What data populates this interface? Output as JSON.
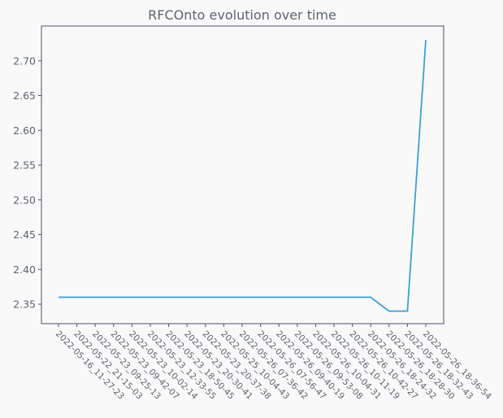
{
  "chart_data": {
    "type": "line",
    "title": "RFCOnto evolution over time",
    "xlabel": "",
    "ylabel": "",
    "categories": [
      "2022-05-16_11-27-23",
      "2022-05-22_21-15-03",
      "2022-05-23_09-25-13",
      "2022-05-23_09-42-07",
      "2022-05-23_10-02-14",
      "2022-05-23_12-33-55",
      "2022-05-23_18-50-45",
      "2022-05-23_20-30-41",
      "2022-05-23_20-37-38",
      "2022-05-25_10-04-43",
      "2022-05-26_07-36-42",
      "2022-05-26_07-56-47",
      "2022-05-26_09-40-19",
      "2022-05-26_09-53-08",
      "2022-05-26_10-04-31",
      "2022-05-26_10-11-19",
      "2022-05-26_10-42-27",
      "2022-05-26_18-24-32",
      "2022-05-26_18-28-30",
      "2022-05-26_18-32-43",
      "2022-05-26_18-36-54"
    ],
    "series": [
      {
        "values": [
          2.36,
          2.36,
          2.36,
          2.36,
          2.36,
          2.36,
          2.36,
          2.36,
          2.36,
          2.36,
          2.36,
          2.36,
          2.36,
          2.36,
          2.36,
          2.36,
          2.36,
          2.36,
          2.34,
          2.34,
          2.73
        ],
        "color": "#3aa0d5"
      }
    ],
    "ylim": [
      2.322,
      2.75
    ],
    "yticks": [
      "2.35",
      "2.40",
      "2.45",
      "2.50",
      "2.55",
      "2.60",
      "2.65",
      "2.70"
    ],
    "grid": false,
    "legend": "none"
  }
}
